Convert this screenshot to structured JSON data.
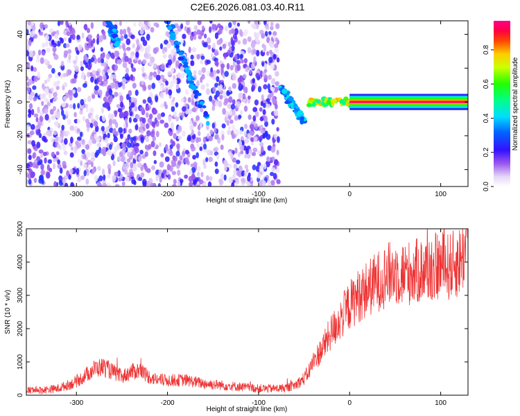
{
  "title": "C2E6.2026.081.03.40.R11",
  "chart_data": [
    {
      "type": "heatmap",
      "xlabel": "Height of straight line (km)",
      "ylabel": "Frequency (Hz)",
      "xlim": [
        -355,
        130
      ],
      "ylim": [
        -50,
        48
      ],
      "xticks": [
        -300,
        -200,
        -100,
        0,
        100
      ],
      "yticks": [
        -40,
        -20,
        0,
        20,
        40
      ],
      "colorbar": {
        "label": "Normalized spectral amplitude",
        "range": [
          0.0,
          0.97
        ],
        "ticks": [
          0.0,
          0.2,
          0.4,
          0.6,
          0.8
        ],
        "tick_labels": [
          "0.0",
          "0.2",
          "0.4",
          "0.6",
          "0.8"
        ],
        "colormap": "rainbow (white-violet-blue-cyan-green-yellow-red-magenta)"
      },
      "features": [
        {
          "name": "noise-region",
          "x_range": [
            -355,
            -78
          ],
          "freq_range": [
            -50,
            48
          ],
          "typical_amplitude": 0.1
        },
        {
          "name": "bright-streak-1",
          "from": [
            -265,
            48
          ],
          "to": [
            -255,
            35
          ],
          "amplitude": 0.4
        },
        {
          "name": "bright-streak-2",
          "from": [
            -200,
            48
          ],
          "to": [
            -155,
            -12
          ],
          "amplitude": 0.4
        },
        {
          "name": "meteor-head",
          "from": [
            -75,
            8
          ],
          "to": [
            -50,
            -12
          ],
          "amplitude": 0.45
        },
        {
          "name": "echo-trail",
          "from": [
            -45,
            0
          ],
          "to": [
            0,
            0
          ],
          "amplitude": 0.8
        },
        {
          "name": "steady-echo",
          "from": [
            0,
            0
          ],
          "to": [
            130,
            0
          ],
          "amplitude": 0.95,
          "width_hz": 3
        }
      ]
    },
    {
      "type": "line",
      "xlabel": "Height of straight line (km)",
      "ylabel": "SNR (10 * v/v)",
      "xlim": [
        -355,
        130
      ],
      "ylim": [
        0,
        5000
      ],
      "xticks": [
        -300,
        -200,
        -100,
        0,
        100
      ],
      "yticks": [
        0,
        1000,
        2000,
        3000,
        4000,
        5000
      ],
      "series": [
        {
          "name": "SNR",
          "color": "#ee3333",
          "x": [
            -355,
            -340,
            -320,
            -300,
            -290,
            -280,
            -270,
            -260,
            -250,
            -240,
            -230,
            -220,
            -210,
            -200,
            -180,
            -160,
            -140,
            -120,
            -100,
            -90,
            -80,
            -70,
            -60,
            -50,
            -45,
            -40,
            -30,
            -20,
            -10,
            0,
            10,
            20,
            30,
            40,
            50,
            60,
            70,
            80,
            90,
            100,
            110,
            120,
            130
          ],
          "values": [
            150,
            150,
            200,
            400,
            600,
            800,
            850,
            700,
            550,
            700,
            750,
            550,
            450,
            450,
            450,
            350,
            300,
            250,
            200,
            200,
            200,
            220,
            300,
            500,
            700,
            1000,
            1400,
            1900,
            2300,
            2700,
            3000,
            3200,
            3400,
            3600,
            3700,
            3650,
            3700,
            3750,
            3800,
            3900,
            3850,
            4000,
            4500
          ]
        }
      ]
    }
  ]
}
